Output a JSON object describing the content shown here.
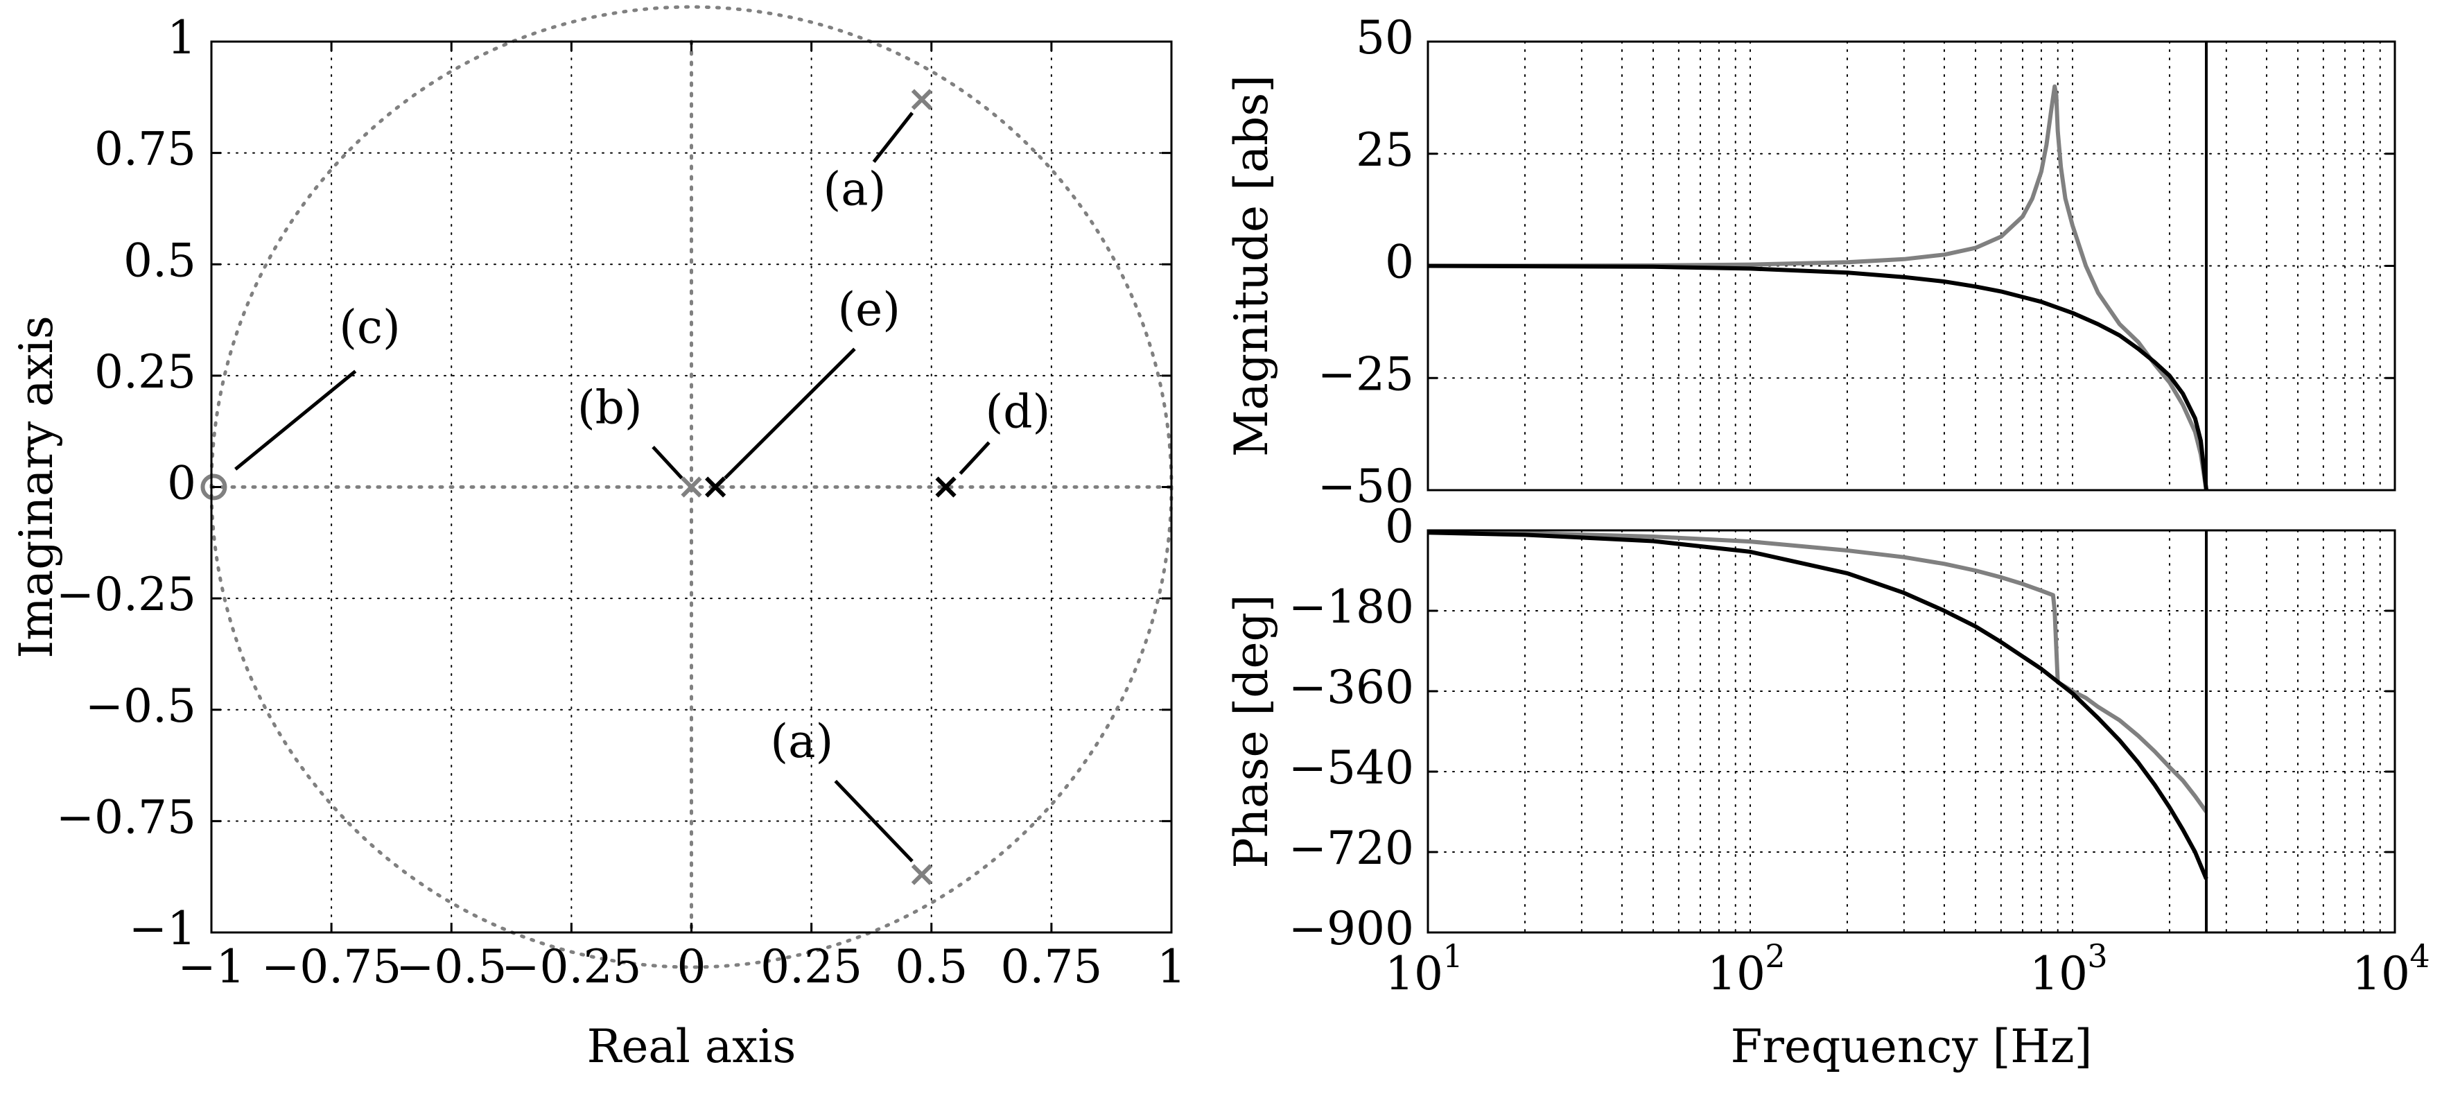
{
  "colors": {
    "black": "#000000",
    "gray": "#808080",
    "grid": "#000000",
    "unit_circle": "#808080"
  },
  "chart_data": [
    {
      "type": "scatter",
      "id": "pz",
      "title": "",
      "xlabel": "Real axis",
      "ylabel": "Imaginary axis",
      "xlim": [
        -1,
        1
      ],
      "ylim": [
        -1,
        1
      ],
      "grid": true,
      "xticks": [
        -1,
        -0.75,
        -0.5,
        -0.25,
        0,
        0.25,
        0.5,
        0.75,
        1
      ],
      "xtick_labels": [
        "−1",
        "−0.75",
        "−0.5",
        "−0.25",
        "0",
        "0.25",
        "0.5",
        "0.75",
        "1"
      ],
      "yticks": [
        1,
        0.75,
        0.5,
        0.25,
        0,
        -0.25,
        -0.5,
        -0.75,
        -1
      ],
      "ytick_labels": [
        "1",
        "0.75",
        "0.5",
        "0.25",
        "0",
        "−0.25",
        "−0.5",
        "−0.75",
        "−1"
      ],
      "unit_circle": true,
      "points": [
        {
          "id": "pole-a-upper",
          "marker": "x",
          "color": "gray",
          "x": 0.48,
          "y": 0.87
        },
        {
          "id": "pole-a-lower",
          "marker": "x",
          "color": "gray",
          "x": 0.48,
          "y": -0.87
        },
        {
          "id": "pole-b",
          "marker": "x",
          "color": "gray",
          "x": 0.0,
          "y": 0.0
        },
        {
          "id": "zero-c",
          "marker": "o",
          "color": "gray",
          "x": -0.995,
          "y": 0.0
        },
        {
          "id": "pole-e",
          "marker": "x",
          "color": "black",
          "x": 0.05,
          "y": 0.0
        },
        {
          "id": "pole-d",
          "marker": "x",
          "color": "black",
          "x": 0.53,
          "y": 0.0
        }
      ],
      "annotations": [
        {
          "id": "a-upper",
          "text": "(a)",
          "x": 0.34,
          "y": 0.66,
          "line": [
            [
              0.38,
              0.73
            ],
            [
              0.46,
              0.84
            ]
          ]
        },
        {
          "id": "a-lower",
          "text": "(a)",
          "x": 0.23,
          "y": -0.58,
          "line": [
            [
              0.3,
              -0.66
            ],
            [
              0.46,
              -0.84
            ]
          ]
        },
        {
          "id": "b",
          "text": "(b)",
          "x": -0.17,
          "y": 0.17,
          "line": [
            [
              -0.08,
              0.09
            ],
            [
              -0.02,
              0.02
            ]
          ]
        },
        {
          "id": "c",
          "text": "(c)",
          "x": -0.67,
          "y": 0.35,
          "line": [
            [
              -0.7,
              0.26
            ],
            [
              -0.95,
              0.04
            ]
          ]
        },
        {
          "id": "e",
          "text": "(e)",
          "x": 0.37,
          "y": 0.39,
          "line": [
            [
              0.34,
              0.31
            ],
            [
              0.07,
              0.02
            ]
          ]
        },
        {
          "id": "d",
          "text": "(d)",
          "x": 0.68,
          "y": 0.16,
          "line": [
            [
              0.62,
              0.1
            ],
            [
              0.56,
              0.03
            ]
          ]
        }
      ]
    },
    {
      "type": "line",
      "id": "mag",
      "title": "",
      "xlabel": "",
      "ylabel": "Magnitude [abs]",
      "xscale": "log",
      "xlim": [
        10,
        10000
      ],
      "ylim": [
        -50,
        50
      ],
      "grid": true,
      "yticks": [
        50,
        25,
        0,
        -25,
        -50
      ],
      "ytick_labels": [
        "50",
        "25",
        "0",
        "−25",
        "−50"
      ],
      "vline": 2600,
      "series": [
        {
          "name": "gray",
          "color": "gray",
          "x": [
            10,
            50,
            100,
            200,
            300,
            400,
            500,
            600,
            700,
            750,
            800,
            830,
            860,
            880,
            890,
            900,
            920,
            950,
            1000,
            1100,
            1200,
            1400,
            1600,
            1800,
            2000,
            2200,
            2400,
            2500,
            2600
          ],
          "y": [
            0,
            0.1,
            0.3,
            0.8,
            1.5,
            2.5,
            4,
            6.5,
            11,
            15,
            21,
            27,
            35,
            40,
            38,
            30,
            22,
            15,
            9,
            0,
            -6,
            -13,
            -17,
            -22,
            -26,
            -31,
            -37,
            -42,
            -50
          ]
        },
        {
          "name": "black",
          "color": "black",
          "x": [
            10,
            50,
            100,
            200,
            300,
            400,
            500,
            600,
            800,
            1000,
            1200,
            1400,
            1600,
            1800,
            2000,
            2200,
            2400,
            2500,
            2600
          ],
          "y": [
            0,
            -0.2,
            -0.6,
            -1.5,
            -2.5,
            -3.5,
            -4.6,
            -5.7,
            -8,
            -10.5,
            -13,
            -15.5,
            -18.5,
            -21.5,
            -24.5,
            -28.5,
            -34,
            -39,
            -50
          ]
        }
      ]
    },
    {
      "type": "line",
      "id": "phase",
      "title": "",
      "xlabel": "Frequency [Hz]",
      "ylabel": "Phase [deg]",
      "xscale": "log",
      "xlim": [
        10,
        10000
      ],
      "ylim": [
        -900,
        0
      ],
      "grid": true,
      "xticks": [
        10,
        100,
        1000,
        10000
      ],
      "xtick_base": "10",
      "xtick_exps": [
        "1",
        "2",
        "3",
        "4"
      ],
      "yticks": [
        0,
        -180,
        -360,
        -540,
        -720,
        -900
      ],
      "ytick_labels": [
        "0",
        "−180",
        "−360",
        "−540",
        "−720",
        "−900"
      ],
      "vline": 2600,
      "series": [
        {
          "name": "gray",
          "color": "gray",
          "x": [
            10,
            20,
            50,
            100,
            200,
            300,
            400,
            500,
            600,
            700,
            800,
            870,
            880,
            900,
            950,
            1000,
            1100,
            1200,
            1400,
            1600,
            1800,
            2000,
            2200,
            2400,
            2600
          ],
          "y": [
            -3,
            -6,
            -14,
            -25,
            -45,
            -60,
            -75,
            -90,
            -105,
            -120,
            -135,
            -145,
            -180,
            -340,
            -350,
            -360,
            -375,
            -395,
            -425,
            -460,
            -495,
            -530,
            -560,
            -595,
            -630
          ]
        },
        {
          "name": "black",
          "color": "black",
          "x": [
            10,
            20,
            50,
            100,
            200,
            300,
            400,
            500,
            600,
            800,
            1000,
            1200,
            1400,
            1600,
            1800,
            2000,
            2200,
            2400,
            2600
          ],
          "y": [
            -5,
            -10,
            -24,
            -48,
            -96,
            -140,
            -180,
            -215,
            -250,
            -310,
            -365,
            -420,
            -470,
            -520,
            -570,
            -620,
            -670,
            -720,
            -780
          ]
        }
      ]
    }
  ]
}
